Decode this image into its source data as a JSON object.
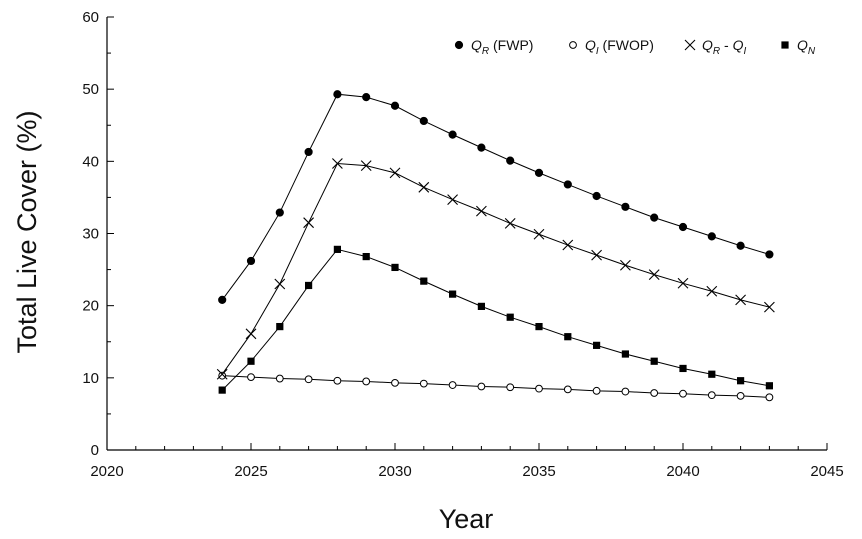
{
  "chart_data": {
    "type": "line",
    "xlabel": "Year",
    "ylabel": "Total Live Cover (%)",
    "xlim": [
      2020,
      2045
    ],
    "ylim": [
      0,
      60
    ],
    "xticks": [
      "2020",
      "2025",
      "2030",
      "2035",
      "2040",
      "2045"
    ],
    "yticks": [
      "0",
      "10",
      "20",
      "30",
      "40",
      "50",
      "60"
    ],
    "grid": false,
    "legend_position": "top-right",
    "x": [
      2024,
      2025,
      2026,
      2027,
      2028,
      2029,
      2030,
      2031,
      2032,
      2033,
      2034,
      2035,
      2036,
      2037,
      2038,
      2039,
      2040,
      2041,
      2042,
      2043
    ],
    "series": [
      {
        "name": "Q_R (FWP)",
        "legend_main": "Q",
        "legend_sub": "R",
        "legend_suffix": " (FWP)",
        "marker": "filled-circle",
        "values": [
          20.8,
          26.2,
          32.9,
          41.3,
          49.3,
          48.9,
          47.7,
          45.6,
          43.7,
          41.9,
          40.1,
          38.4,
          36.8,
          35.2,
          33.7,
          32.2,
          30.9,
          29.6,
          28.3,
          27.1
        ]
      },
      {
        "name": "Q_I (FWOP)",
        "legend_main": "Q",
        "legend_sub": "I",
        "legend_suffix": " (FWOP)",
        "marker": "open-circle",
        "values": [
          10.3,
          10.1,
          9.9,
          9.8,
          9.6,
          9.5,
          9.3,
          9.2,
          9.0,
          8.8,
          8.7,
          8.5,
          8.4,
          8.2,
          8.1,
          7.9,
          7.8,
          7.6,
          7.5,
          7.3
        ]
      },
      {
        "name": "Q_R - Q_I",
        "legend_main": "Q",
        "legend_sub": "R",
        "legend_suffix": " - ",
        "legend_main2": "Q",
        "legend_sub2": "I",
        "marker": "cross",
        "values": [
          10.5,
          16.1,
          23.0,
          31.5,
          39.7,
          39.4,
          38.4,
          36.4,
          34.7,
          33.1,
          31.4,
          29.9,
          28.4,
          27.0,
          25.6,
          24.3,
          23.1,
          22.0,
          20.8,
          19.8
        ]
      },
      {
        "name": "Q_N",
        "legend_main": "Q",
        "legend_sub": "N",
        "legend_suffix": "",
        "marker": "filled-square",
        "values": [
          8.3,
          12.3,
          17.1,
          22.8,
          27.8,
          26.8,
          25.3,
          23.4,
          21.6,
          19.9,
          18.4,
          17.1,
          15.7,
          14.5,
          13.3,
          12.3,
          11.3,
          10.5,
          9.6,
          8.9
        ]
      }
    ]
  }
}
